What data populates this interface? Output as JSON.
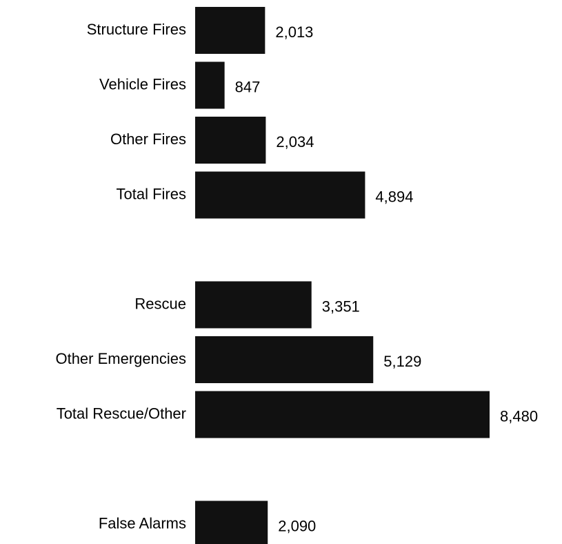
{
  "chart_data": {
    "type": "bar",
    "orientation": "horizontal",
    "color": "#111111",
    "categories": [
      "Structure Fires",
      "Vehicle Fires",
      "Other Fires",
      "Total Fires",
      null,
      "Rescue",
      "Other Emergencies",
      "Total Rescue/Other",
      null,
      "False Alarms"
    ],
    "values": [
      2013,
      847,
      2034,
      4894,
      null,
      3351,
      5129,
      8480,
      null,
      2090
    ],
    "value_labels": [
      "2,013",
      "847",
      "2,034",
      "4,894",
      null,
      "3,351",
      "5,129",
      "8,480",
      null,
      "2,090"
    ]
  }
}
